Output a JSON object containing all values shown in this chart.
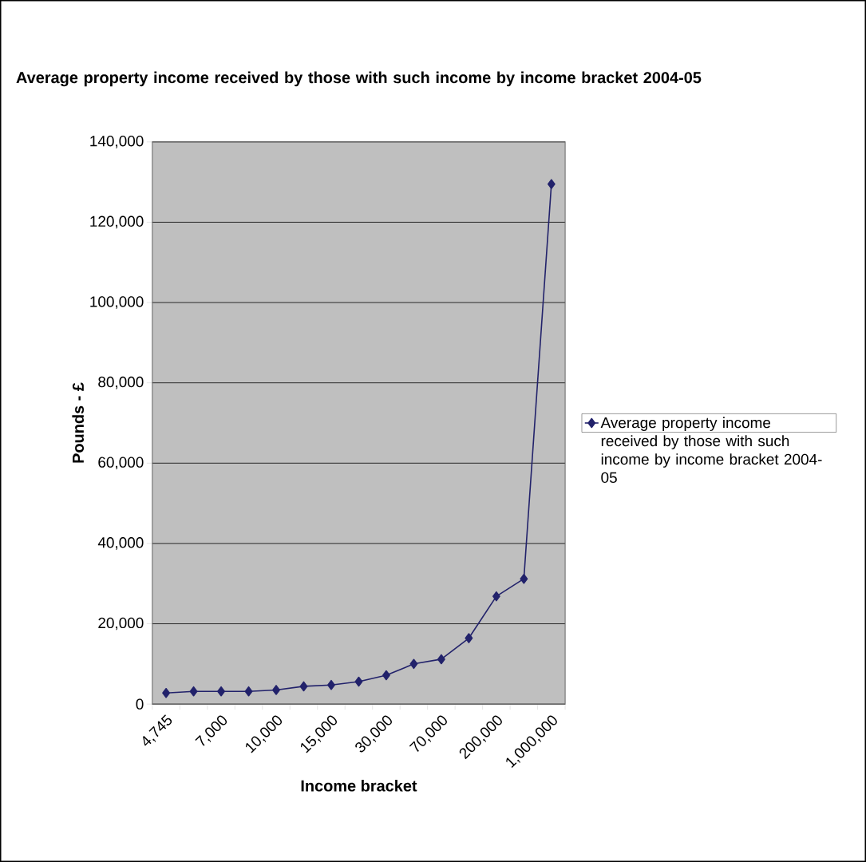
{
  "chart_data": {
    "type": "line",
    "title": "Average property income received by those with such income by income  bracket 2004-05",
    "xlabel": "Income bracket",
    "ylabel": "Pounds - £",
    "categories": [
      "4,745",
      null,
      "7,000",
      null,
      "10,000",
      null,
      "15,000",
      null,
      "30,000",
      null,
      "70,000",
      null,
      "200,000",
      null,
      "1,000,000"
    ],
    "series": [
      {
        "name": "Average property income received by those with such income by income bracket 2004-05",
        "color": "#22226b",
        "values": [
          2760,
          3170,
          3170,
          3170,
          3520,
          4420,
          4760,
          5590,
          7180,
          10000,
          11180,
          16420,
          26840,
          31200,
          129500
        ]
      }
    ],
    "ylim": [
      0,
      140000
    ],
    "yticks": [
      {
        "value": 0,
        "label": "0"
      },
      {
        "value": 20000,
        "label": "20,000"
      },
      {
        "value": 40000,
        "label": "40,000"
      },
      {
        "value": 60000,
        "label": "60,000"
      },
      {
        "value": 80000,
        "label": "80,000"
      },
      {
        "value": 100000,
        "label": "100,000"
      },
      {
        "value": 120000,
        "label": "120,000"
      },
      {
        "value": 140000,
        "label": "140,000"
      }
    ],
    "grid": "y",
    "legend": "right",
    "marker": "diamond",
    "line_style": "solid"
  }
}
